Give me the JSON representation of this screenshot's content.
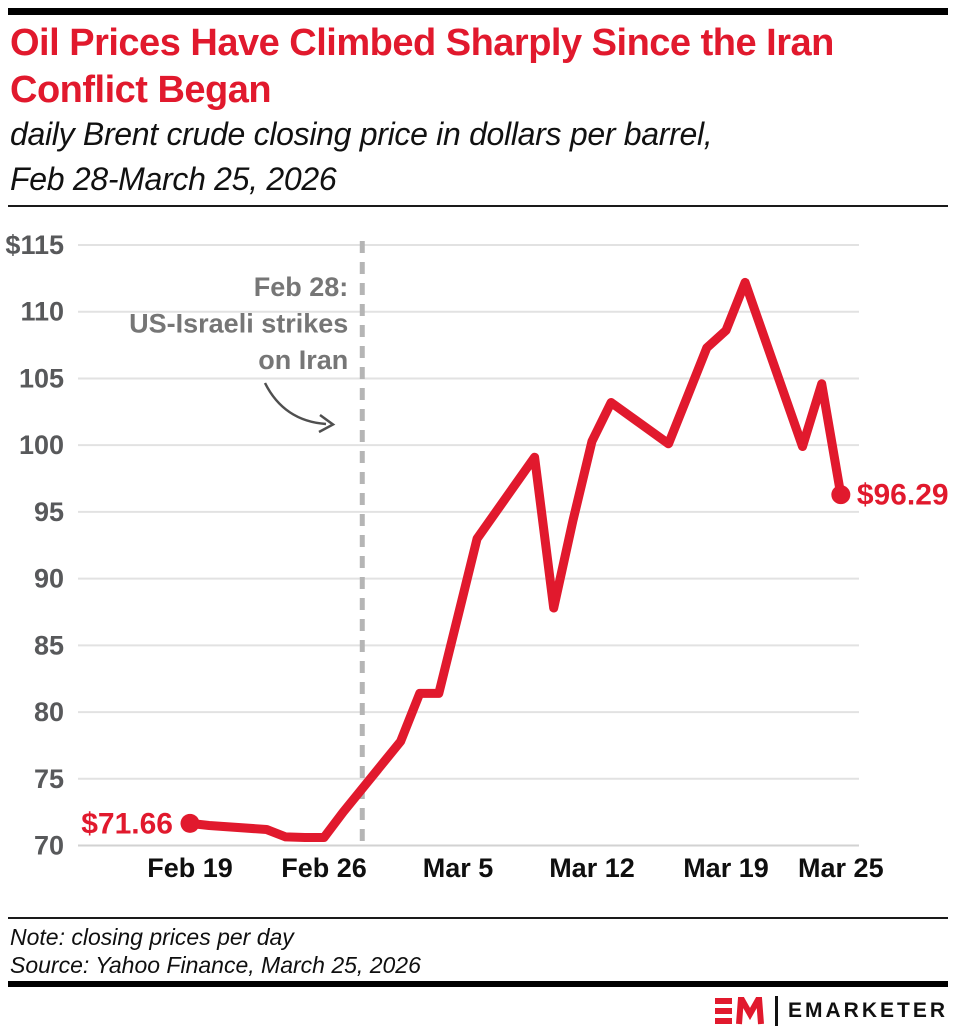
{
  "header": {
    "title_line1": "Oil Prices Have Climbed Sharply Since the Iran",
    "title_line2": "Conflict Began",
    "subtitle_line1": "daily Brent crude closing price in dollars per barrel,",
    "subtitle_line2": "Feb 28-March 25, 2026"
  },
  "footer": {
    "note": "Note: closing prices per day",
    "source": "Source: Yahoo Finance, March 25, 2026",
    "logo_wordmark": "EMARKETER",
    "logo_monogram": "EM"
  },
  "colors": {
    "brand_red": "#e1192d",
    "gridline": "#e2e2e2",
    "baseline": "#d2d2d2",
    "y_label": "#58595b",
    "x_label": "#0f0f0f",
    "annotation": "#767676",
    "dashed_line": "#b5b5b5",
    "arrow": "#4f4f4f"
  },
  "chart_data": {
    "type": "line",
    "title": "Oil Prices Have Climbed Sharply Since the Iran Conflict Began",
    "subtitle": "daily Brent crude closing price in dollars per barrel, Feb 28-March 25, 2026",
    "ylabel": "dollars per barrel",
    "ylim": [
      70,
      115
    ],
    "grid": true,
    "legend_position": "none",
    "y_ticks": [
      {
        "label": "$115",
        "value": 115
      },
      {
        "label": "110",
        "value": 110
      },
      {
        "label": "105",
        "value": 105
      },
      {
        "label": "100",
        "value": 100
      },
      {
        "label": "95",
        "value": 95
      },
      {
        "label": "90",
        "value": 90
      },
      {
        "label": "85",
        "value": 85
      },
      {
        "label": "80",
        "value": 80
      },
      {
        "label": "75",
        "value": 75
      },
      {
        "label": "70",
        "value": 70
      }
    ],
    "x_ticks": [
      {
        "label": "Feb 19",
        "day": 0
      },
      {
        "label": "Feb 26",
        "day": 7
      },
      {
        "label": "Mar 5",
        "day": 14
      },
      {
        "label": "Mar 12",
        "day": 21
      },
      {
        "label": "Mar 19",
        "day": 28
      },
      {
        "label": "Mar 25",
        "day": 34
      }
    ],
    "series_name": "Brent crude daily closing price (USD/barrel)",
    "points": [
      {
        "date": "Feb 19",
        "day": 0,
        "value": 71.66
      },
      {
        "date": "Feb 20",
        "day": 1,
        "value": 71.5
      },
      {
        "date": "Feb 23",
        "day": 4,
        "value": 71.2
      },
      {
        "date": "Feb 24",
        "day": 5,
        "value": 70.65
      },
      {
        "date": "Feb 25",
        "day": 6,
        "value": 70.6
      },
      {
        "date": "Feb 26",
        "day": 7,
        "value": 70.6
      },
      {
        "date": "Feb 27",
        "day": 8,
        "value": 72.5
      },
      {
        "date": "Mar 2",
        "day": 11,
        "value": 77.8
      },
      {
        "date": "Mar 3",
        "day": 12,
        "value": 81.4
      },
      {
        "date": "Mar 4",
        "day": 13,
        "value": 81.4
      },
      {
        "date": "Mar 5",
        "day": 14,
        "value": 87.2
      },
      {
        "date": "Mar 6",
        "day": 15,
        "value": 93.0
      },
      {
        "date": "Mar 9",
        "day": 18,
        "value": 99.1
      },
      {
        "date": "Mar 10",
        "day": 19,
        "value": 87.8
      },
      {
        "date": "Mar 11",
        "day": 20,
        "value": 94.3
      },
      {
        "date": "Mar 12",
        "day": 21,
        "value": 100.3
      },
      {
        "date": "Mar 13",
        "day": 22,
        "value": 103.2
      },
      {
        "date": "Mar 16",
        "day": 25,
        "value": 100.1
      },
      {
        "date": "Mar 17",
        "day": 26,
        "value": 103.7
      },
      {
        "date": "Mar 18",
        "day": 27,
        "value": 107.3
      },
      {
        "date": "Mar 19",
        "day": 28,
        "value": 108.6
      },
      {
        "date": "Mar 20",
        "day": 29,
        "value": 112.2
      },
      {
        "date": "Mar 23",
        "day": 32,
        "value": 99.9
      },
      {
        "date": "Mar 24",
        "day": 33,
        "value": 104.6
      },
      {
        "date": "Mar 25",
        "day": 34,
        "value": 96.29
      }
    ],
    "start_label": "$71.66",
    "end_label": "$96.29",
    "annotation": {
      "lines": [
        "Feb 28:",
        "US-Israeli strikes",
        "on Iran"
      ],
      "event_day": 9,
      "event_date": "Feb 28"
    }
  }
}
